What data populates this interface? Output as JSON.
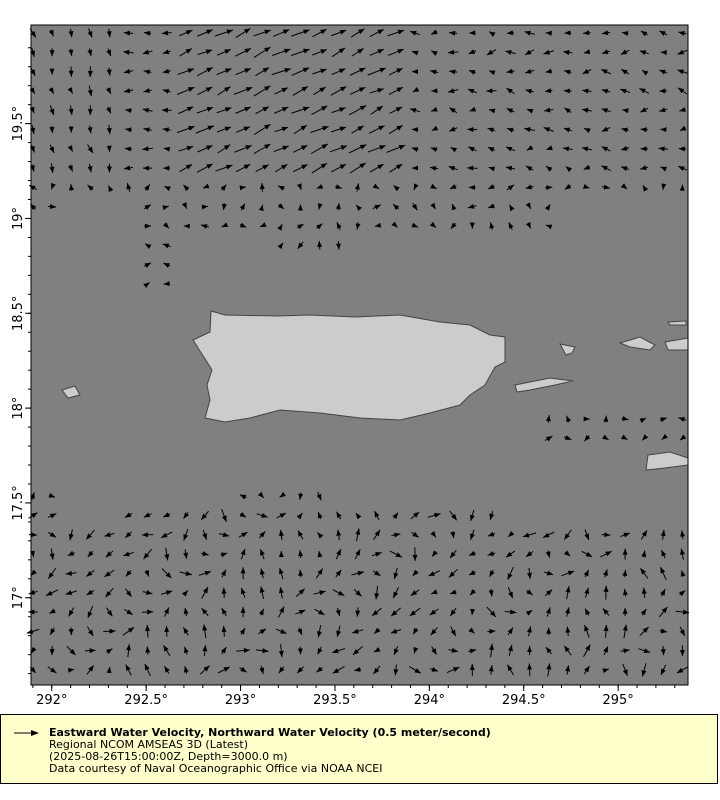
{
  "map": {
    "background_color": "#808080",
    "land_color": "#cccccc",
    "coast_color": "#444444",
    "vector_color": "#000000",
    "lon_range": [
      291.89,
      295.37
    ],
    "lat_range": [
      16.54,
      20.02
    ],
    "x_ticks": [
      {
        "value": 292,
        "label": "292°"
      },
      {
        "value": 292.5,
        "label": "292.5°"
      },
      {
        "value": 293,
        "label": "293°"
      },
      {
        "value": 293.5,
        "label": "293.5°"
      },
      {
        "value": 294,
        "label": "294°"
      },
      {
        "value": 294.5,
        "label": "294.5°"
      },
      {
        "value": 295,
        "label": "295°"
      }
    ],
    "y_ticks": [
      {
        "value": 17,
        "label": "17°"
      },
      {
        "value": 17.5,
        "label": "17.5°"
      },
      {
        "value": 18,
        "label": "18°"
      },
      {
        "value": 18.5,
        "label": "18.5°"
      },
      {
        "value": 19,
        "label": "19°"
      },
      {
        "value": 19.5,
        "label": "19.5°"
      }
    ]
  },
  "legend": {
    "title": "Eastward Water Velocity, Northward Water Velocity (0.5 meter/second)",
    "dataset": "Regional NCOM AMSEAS 3D (Latest)",
    "time_depth": "(2025-08-26T15:00:00Z, Depth=3000.0 m)",
    "credit": "Data courtesy of Naval Oceanographic Office via NOAA NCEI",
    "icon": "arrow-right-icon"
  }
}
